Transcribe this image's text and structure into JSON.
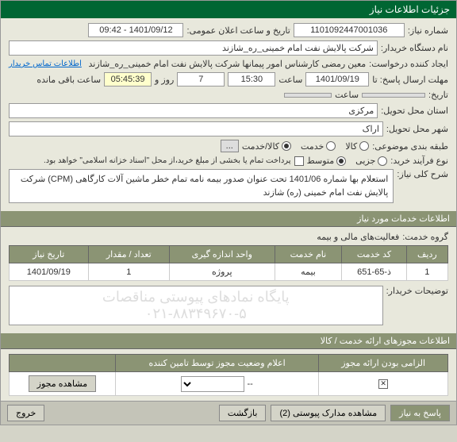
{
  "titlebar": "جزئیات اطلاعات نیاز",
  "fields": {
    "need_number_label": "شماره نیاز:",
    "need_number": "1101092447001036",
    "announce_label": "تاریخ و ساعت اعلان عمومی:",
    "announce_date": "1401/09/12 - 09:42",
    "requester_label": "نام دستگاه خریدار:",
    "requester": "شرکت پالایش نفت امام خمینی_ره_شازند",
    "creator_label": "ایجاد کننده درخواست:",
    "creator": "معین رمضی کارشناس امور پیمانها شرکت پالایش نفت امام خمینی_ره_شازند",
    "contact_link": "اطلاعات تماس خریدار",
    "deadline_label": "مهلت ارسال پاسخ: تا",
    "deadline_date": "1401/09/19",
    "time_label": "ساعت",
    "deadline_time": "15:30",
    "days": "7",
    "days_label": "روز و",
    "remaining_time": "05:45:39",
    "remaining_label": "ساعت باقی مانده",
    "history_label": "تاریخ:",
    "province_label": "استان محل تحویل:",
    "province": "مرکزی",
    "city_label": "شهر محل تحویل:",
    "city": "اراک",
    "category_label": "طبقه بندی موضوعی:",
    "radio_goods": "کالا",
    "radio_service": "خدمت",
    "radio_both": "کالا/خدمت",
    "purchase_type_label": "نوع فرآیند خرید:",
    "radio_low": "جزیی",
    "radio_medium": "متوسط",
    "purchase_note": "پرداخت تمام یا بخشی از مبلغ خرید،از محل \"اسناد خزانه اسلامی\" خواهد بود.",
    "keywords_label": "شرح کلی نیاز:",
    "keywords": "استعلام بها شماره 1401/06 تحت عنوان صدور بیمه نامه تمام خطر ماشین آلات کارگاهی (CPM) شرکت پالایش نفت امام خمینی (ره) شازند"
  },
  "section_services": "اطلاعات خدمات مورد نیاز",
  "group_label": "گروه خدمت:",
  "group_value": "فعالیت‌های مالی و بیمه",
  "table": {
    "headers": [
      "ردیف",
      "کد خدمت",
      "نام خدمت",
      "واحد اندازه گیری",
      "تعداد / مقدار",
      "تاریخ نیاز"
    ],
    "rows": [
      [
        "1",
        "ذ-65-651",
        "بیمه",
        "پروژه",
        "1",
        "1401/09/19"
      ]
    ]
  },
  "buyer_notes_label": "توضیحات خریدار:",
  "watermark1": "پایگاه نمادهای پیوستی مناقصات",
  "watermark2": "۰۲۱-۸۸۳۴۹۶۷۰-۵",
  "section_permits": "اطلاعات مجوزهای ارائه خدمت / کالا",
  "permit_table": {
    "headers": [
      "الزامی بودن ارائه مجوز",
      "اعلام وضعیت مجوز توسط تامین کننده",
      ""
    ],
    "required_checked": true,
    "status": "--",
    "view_btn": "مشاهده مجوز"
  },
  "footer": {
    "reply": "پاسخ به نیاز",
    "attachments": "مشاهده مدارک پیوستی (2)",
    "back": "بازگشت",
    "exit": "خروج"
  }
}
